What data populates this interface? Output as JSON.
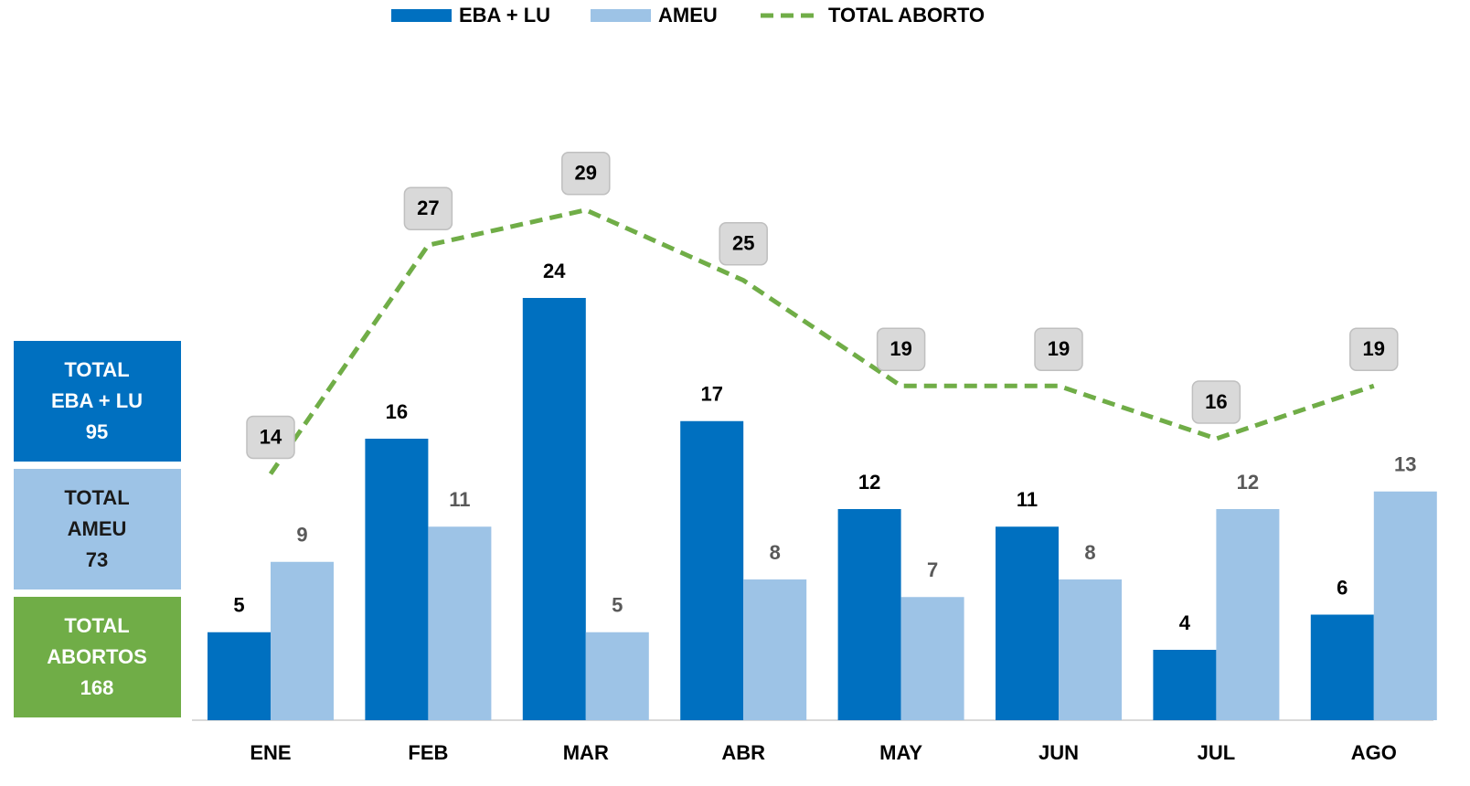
{
  "chart_data": {
    "type": "bar_line",
    "categories": [
      "ENE",
      "FEB",
      "MAR",
      "ABR",
      "MAY",
      "JUN",
      "JUL",
      "AGO"
    ],
    "series": [
      {
        "name": "EBA + LU",
        "type": "bar",
        "color": "#0070c0",
        "label_color": "#000000",
        "values": [
          5,
          16,
          24,
          17,
          12,
          11,
          4,
          6
        ]
      },
      {
        "name": "AMEU",
        "type": "bar",
        "color": "#9dc3e6",
        "label_color": "#595959",
        "values": [
          9,
          11,
          5,
          8,
          7,
          8,
          12,
          13
        ]
      },
      {
        "name": "TOTAL ABORTO",
        "type": "line",
        "color": "#70ad47",
        "values": [
          14,
          27,
          29,
          25,
          19,
          19,
          16,
          19
        ]
      }
    ],
    "ylim": [
      0,
      40
    ],
    "legend": "top",
    "summary": [
      {
        "lines": [
          "TOTAL",
          "EBA + LU"
        ],
        "value": 95,
        "color": "#0070c0",
        "text_color": "#ffffff"
      },
      {
        "lines": [
          "TOTAL",
          "AMEU"
        ],
        "value": 73,
        "color": "#9dc3e6",
        "text_color": "#1a1a1a"
      },
      {
        "lines": [
          "TOTAL",
          "ABORTOS"
        ],
        "value": 168,
        "color": "#70ad47",
        "text_color": "#ffffff"
      }
    ]
  }
}
